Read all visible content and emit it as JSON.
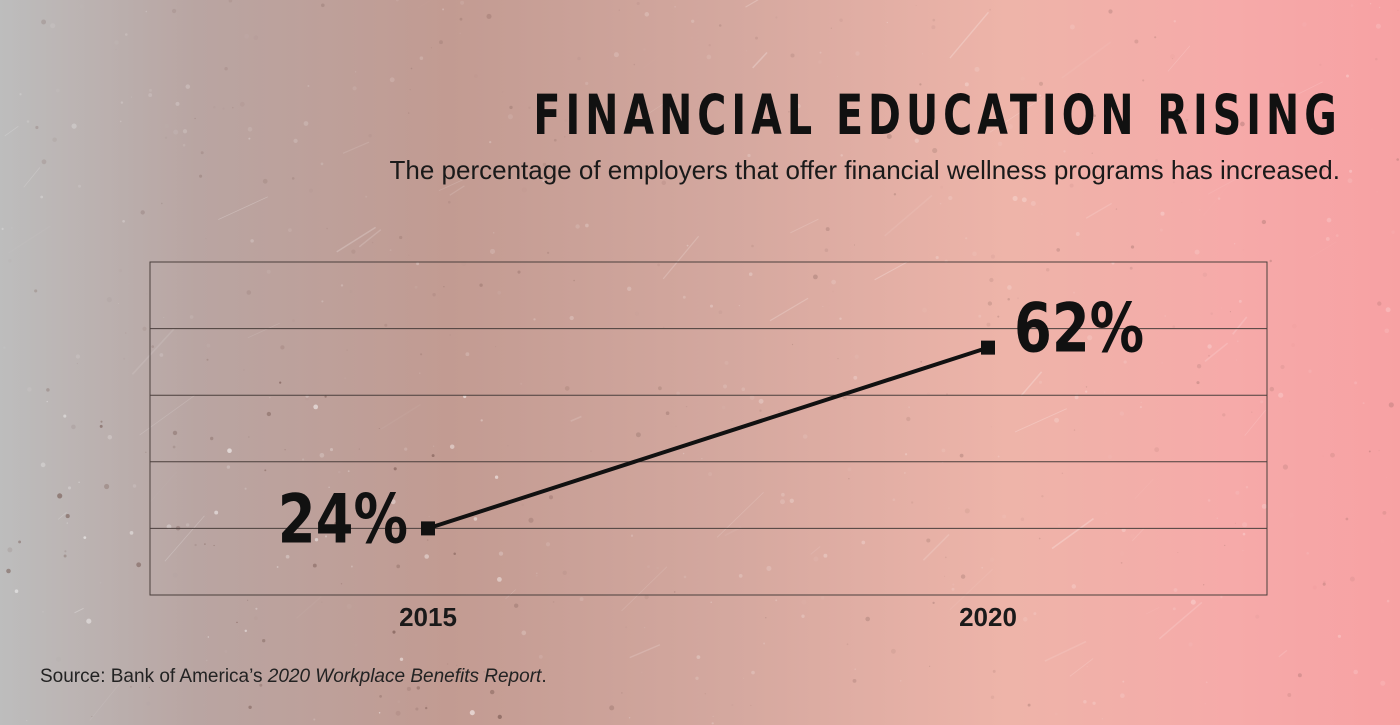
{
  "title": "FINANCIAL EDUCATION RISING",
  "subtitle": "The percentage of employers that offer financial wellness programs has increased.",
  "source": {
    "prefix": "Source: Bank of America’s ",
    "report": "2020 Workplace Benefits Report",
    "suffix": "."
  },
  "colors": {
    "line": "#111111",
    "gridline": "#4a3f3c",
    "text": "#111111"
  },
  "chart_data": {
    "type": "line",
    "title": "FINANCIAL EDUCATION RISING",
    "subtitle": "The percentage of employers that offer financial wellness programs has increased.",
    "categories": [
      "2015",
      "2020"
    ],
    "series": [
      {
        "values": [
          24,
          62
        ]
      }
    ],
    "data_labels": [
      "24%",
      "62%"
    ],
    "ylim": [
      10,
      80
    ],
    "grid": true,
    "legend": "none"
  }
}
